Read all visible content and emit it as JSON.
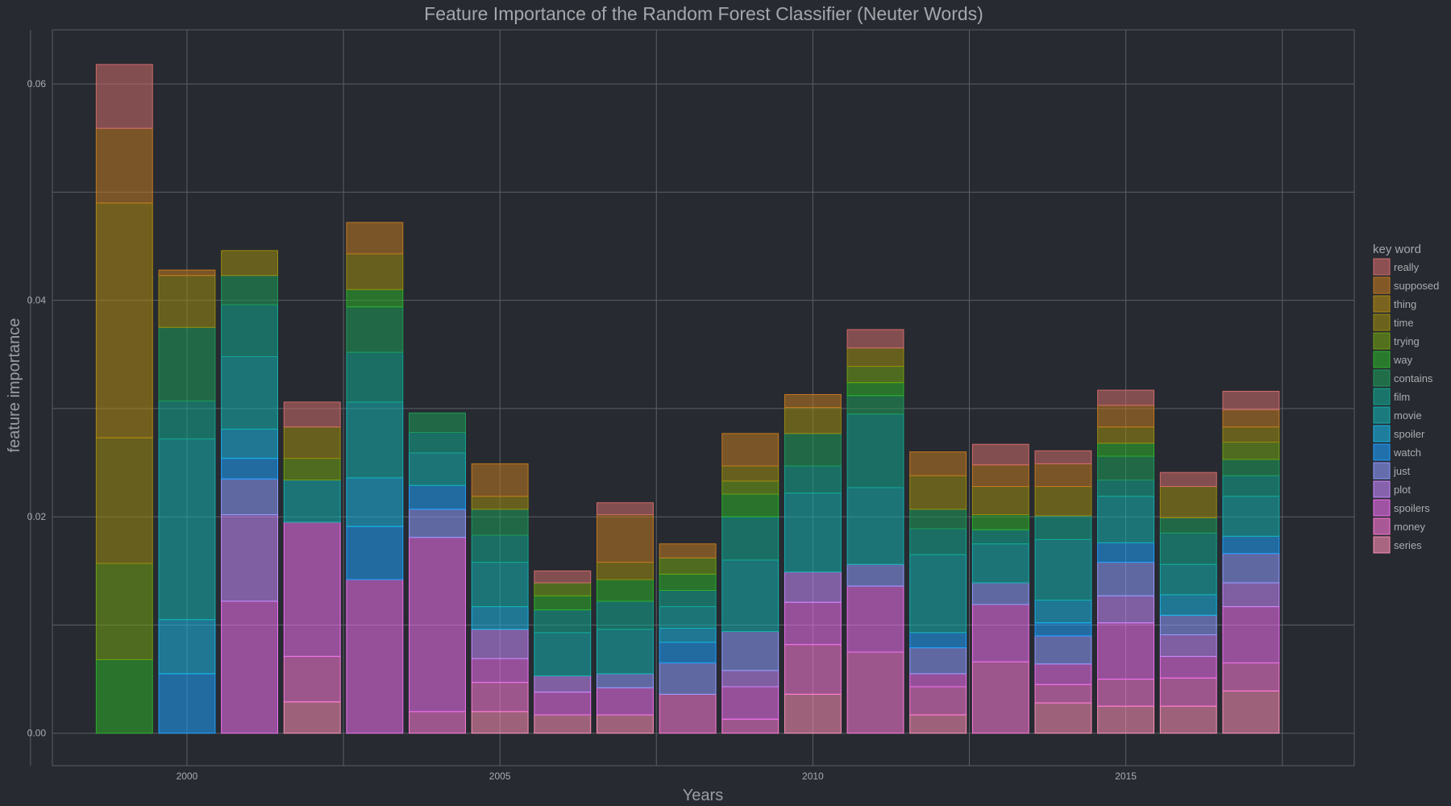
{
  "chart_data": {
    "type": "bar",
    "stacked": true,
    "title": "Feature Importance of the Random Forest Classifier (Neuter Words)",
    "xlabel": "Years",
    "ylabel": "feature importance",
    "xlim": [
      1997.85,
      2018.65
    ],
    "ylim": [
      -0.003,
      0.065
    ],
    "x_ticks": [
      2000,
      2005,
      2010,
      2015
    ],
    "x_tick_labels": [
      "2000",
      "2005",
      "2010",
      "2015"
    ],
    "x_minor_grid": [
      1997.5,
      2002.5,
      2007.5,
      2012.5,
      2017.5
    ],
    "y_ticks": [
      0,
      0.02,
      0.04,
      0.06
    ],
    "y_tick_labels": [
      "0.00",
      "0.02",
      "0.04",
      "0.06"
    ],
    "y_minor_grid": [
      0.01,
      0.03,
      0.05
    ],
    "grid": true,
    "legend_position": "right",
    "legend_title": "key word",
    "categories": [
      1999,
      2000,
      2001,
      2002,
      2003,
      2004,
      2005,
      2006,
      2007,
      2008,
      2009,
      2010,
      2011,
      2012,
      2013,
      2014,
      2015,
      2016,
      2017
    ],
    "series": [
      {
        "name": "series",
        "color": "#ff8fb8",
        "values": [
          0,
          0,
          0,
          0.0029,
          0,
          0,
          0.002,
          0.0017,
          0.0017,
          0,
          0,
          0.0036,
          0,
          0.0017,
          0,
          0.0028,
          0.0025,
          0.0025,
          0.0039
        ]
      },
      {
        "name": "money",
        "color": "#ff7ad8",
        "values": [
          0,
          0,
          0,
          0.0042,
          0,
          0.002,
          0.0027,
          0,
          0,
          0.0036,
          0.0013,
          0.0046,
          0.0075,
          0.0026,
          0.0066,
          0.0017,
          0.0025,
          0.0026,
          0.0026
        ]
      },
      {
        "name": "spoilers",
        "color": "#f070f0",
        "values": [
          0,
          0,
          0.0122,
          0.0124,
          0.0142,
          0.0161,
          0.0022,
          0.0021,
          0.0025,
          0,
          0.003,
          0.0039,
          0.0061,
          0.0012,
          0.0053,
          0.0019,
          0.0052,
          0.002,
          0.0052
        ]
      },
      {
        "name": "plot",
        "color": "#c889ff",
        "values": [
          0,
          0,
          0.008,
          0,
          0,
          0,
          0.0027,
          0.0015,
          0,
          0,
          0.0015,
          0.0028,
          0,
          0,
          0,
          0,
          0.0025,
          0.002,
          0.0022
        ]
      },
      {
        "name": "just",
        "color": "#8f9bff",
        "values": [
          0,
          0,
          0.0033,
          0,
          0,
          0.0026,
          0,
          0,
          0.0013,
          0.0029,
          0.0036,
          0,
          0.002,
          0.0024,
          0.002,
          0.0026,
          0.0031,
          0.0018,
          0.0027
        ]
      },
      {
        "name": "watch",
        "color": "#1ea0ff",
        "values": [
          0,
          0.0055,
          0.0019,
          0,
          0.0049,
          0.0022,
          0,
          0,
          0,
          0.0019,
          0,
          0,
          0,
          0.0014,
          0,
          0.0012,
          0.0018,
          0,
          0.0016
        ]
      },
      {
        "name": "spoiler",
        "color": "#19b6e6",
        "values": [
          0,
          0.005,
          0.0027,
          0,
          0.0045,
          0,
          0.0021,
          0,
          0,
          0.0013,
          0,
          0,
          0,
          0,
          0,
          0.0021,
          0,
          0.0019,
          0
        ]
      },
      {
        "name": "movie",
        "color": "#14b0b0",
        "values": [
          0,
          0.0167,
          0.0067,
          0.0039,
          0.007,
          0.003,
          0.0041,
          0.004,
          0.0041,
          0.002,
          0.0066,
          0.0073,
          0.0071,
          0.0072,
          0.0036,
          0.0056,
          0.0043,
          0.0028,
          0.0037
        ]
      },
      {
        "name": "film",
        "color": "#12a690",
        "values": [
          0,
          0.0035,
          0.0048,
          0,
          0.0046,
          0.0019,
          0.0025,
          0.0021,
          0.0026,
          0.0015,
          0.004,
          0.0025,
          0.0068,
          0.0024,
          0.0013,
          0.0022,
          0.0015,
          0.0029,
          0.0019
        ]
      },
      {
        "name": "contains",
        "color": "#1e9a5a",
        "values": [
          0,
          0.0068,
          0.0027,
          0,
          0.0042,
          0.0018,
          0.0024,
          0,
          0,
          0,
          0,
          0.003,
          0.0017,
          0.0018,
          0,
          0,
          0.0022,
          0.0014,
          0.0015
        ]
      },
      {
        "name": "way",
        "color": "#2caf2c",
        "values": [
          0.0068,
          0,
          0,
          0,
          0.0016,
          0,
          0,
          0.0013,
          0.002,
          0.0015,
          0.0021,
          0,
          0.0012,
          0,
          0.0014,
          0,
          0.0012,
          0,
          0
        ]
      },
      {
        "name": "trying",
        "color": "#6fa012",
        "values": [
          0.0089,
          0,
          0,
          0.002,
          0,
          0,
          0,
          0.0012,
          0,
          0.0015,
          0.0012,
          0,
          0.0015,
          0,
          0,
          0,
          0,
          0,
          0.0016
        ]
      },
      {
        "name": "time",
        "color": "#9a8a10",
        "values": [
          0.0116,
          0.0048,
          0.0023,
          0.0029,
          0.0033,
          0,
          0.0012,
          0,
          0.0016,
          0,
          0.0014,
          0.0024,
          0.0017,
          0.0031,
          0.0026,
          0.0027,
          0.0015,
          0.0029,
          0.0014
        ]
      },
      {
        "name": "thing",
        "color": "#b08a12",
        "values": [
          0.0217,
          0,
          0,
          0,
          0,
          0,
          0,
          0,
          0,
          0,
          0,
          0,
          0,
          0,
          0,
          0,
          0,
          0,
          0
        ]
      },
      {
        "name": "supposed",
        "color": "#c07820",
        "values": [
          0.0069,
          0.0005,
          0,
          0,
          0.0029,
          0,
          0.003,
          0,
          0.0044,
          0.0013,
          0.003,
          0.0012,
          0,
          0.0022,
          0.002,
          0.0021,
          0.002,
          0,
          0.0016
        ]
      },
      {
        "name": "really",
        "color": "#d06b6b",
        "values": [
          0.0059,
          0,
          0,
          0.0023,
          0,
          0,
          0,
          0.0011,
          0.0011,
          0,
          0,
          0,
          0.0017,
          0,
          0.0019,
          0.0012,
          0.0014,
          0.0013,
          0.0017
        ]
      }
    ],
    "legend_order": [
      "really",
      "supposed",
      "thing",
      "time",
      "trying",
      "way",
      "contains",
      "film",
      "movie",
      "spoiler",
      "watch",
      "just",
      "plot",
      "spoilers",
      "money",
      "series"
    ]
  }
}
